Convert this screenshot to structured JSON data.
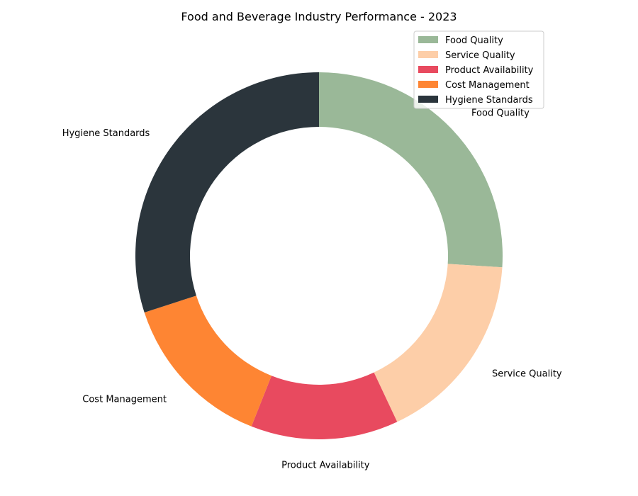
{
  "chart_data": {
    "type": "pie",
    "title": "Food and Beverage Industry Performance - 2023",
    "donut": true,
    "start_angle": "top (12 o'clock), clockwise",
    "legend_position": "top-right",
    "slices": [
      {
        "label": "Food Quality",
        "value": 26,
        "color": "#9ab898"
      },
      {
        "label": "Service Quality",
        "value": 17,
        "color": "#fdcea8"
      },
      {
        "label": "Product Availability",
        "value": 13,
        "color": "#e84a5f"
      },
      {
        "label": "Cost Management",
        "value": 14,
        "color": "#fe8533"
      },
      {
        "label": "Hygiene Standards",
        "value": 30,
        "color": "#2b353c"
      }
    ]
  }
}
